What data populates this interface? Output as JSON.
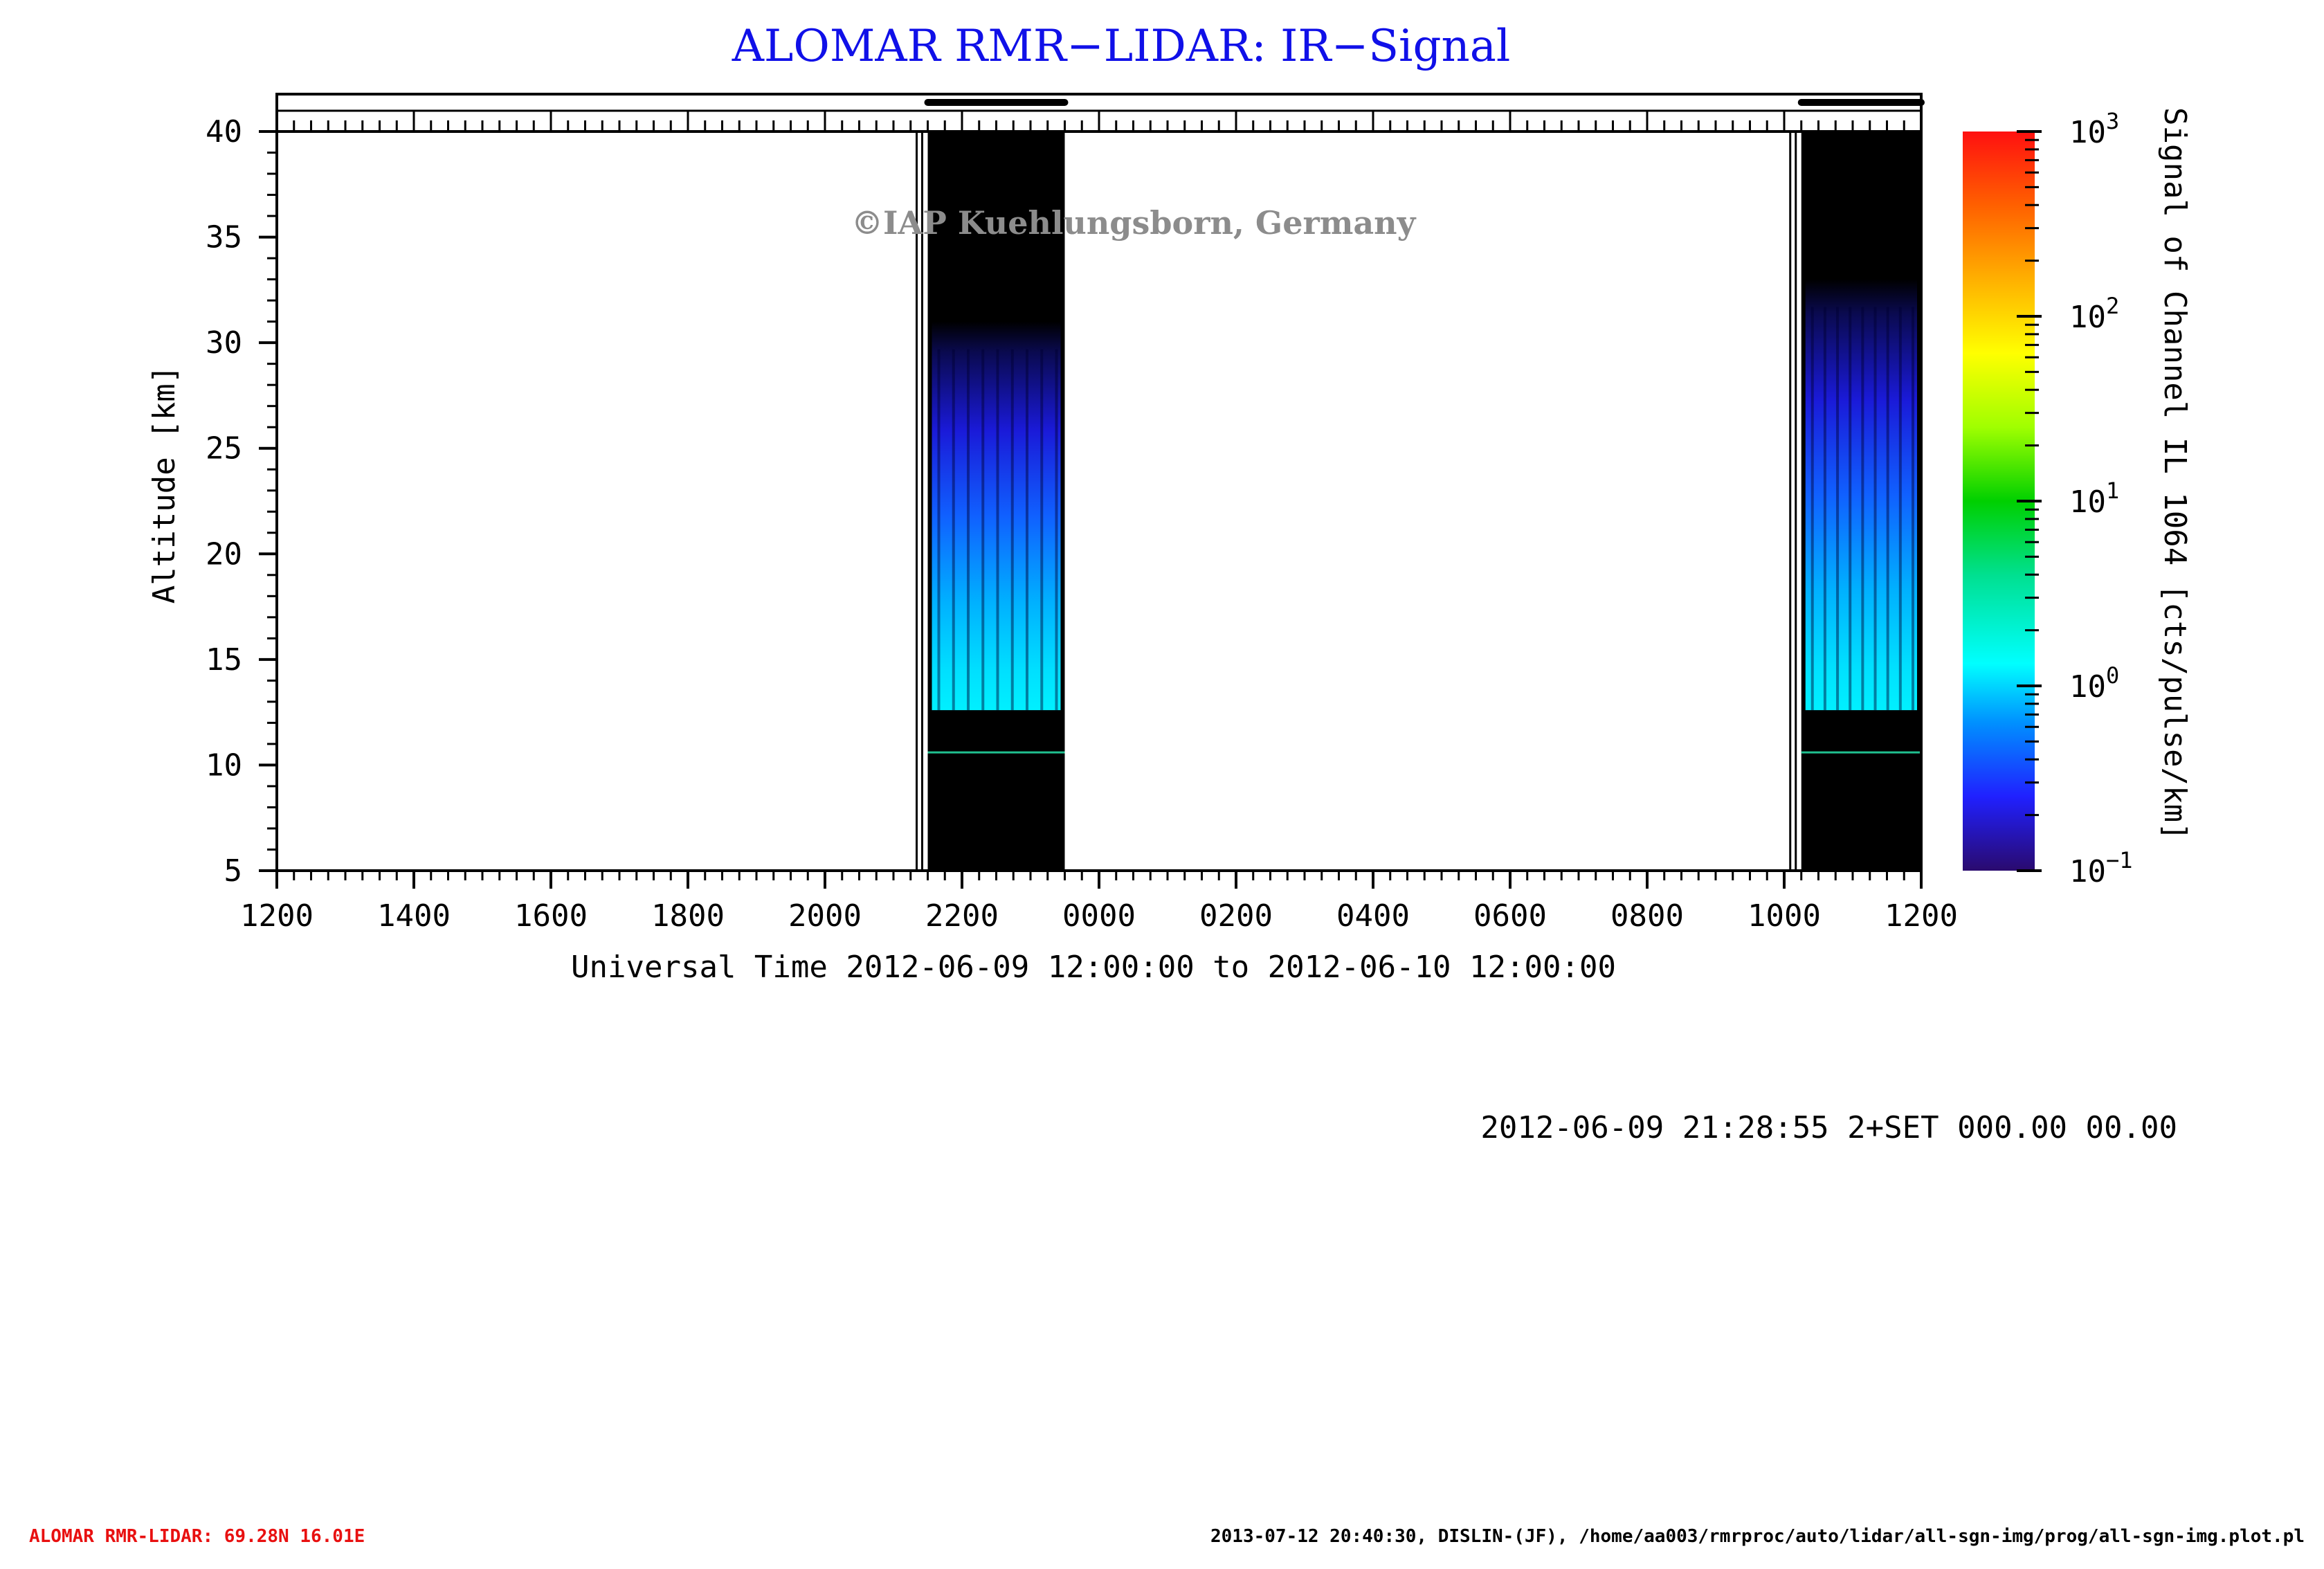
{
  "title": "ALOMAR RMR−LIDAR: IR−Signal",
  "watermark": "©IAP Kuehlungsborn, Germany",
  "info_line": "2012-06-09 21:28:55 2+SET 000.00 00.00",
  "footer_left": "ALOMAR RMR-LIDAR: 69.28N 16.01E",
  "footer_right": "2013-07-12 20:40:30, DISLIN-(JF), /home/aa003/rmrproc/auto/lidar/all-sgn-img/prog/all-sgn-img.plot.pl",
  "chart_data": {
    "type": "heatmap",
    "title": "ALOMAR RMR−LIDAR: IR−Signal",
    "xlabel": "Universal Time 2012-06-09 12:00:00 to 2012-06-10 12:00:00",
    "ylabel": "Altitude [km]",
    "x_range_hours": [
      0,
      24
    ],
    "x_tick_labels": [
      "1200",
      "1400",
      "1600",
      "1800",
      "2000",
      "2200",
      "0000",
      "0200",
      "0400",
      "0600",
      "0800",
      "1000",
      "1200"
    ],
    "ylim": [
      5,
      40
    ],
    "y_ticks": [
      5,
      10,
      15,
      20,
      25,
      30,
      35,
      40
    ],
    "colorbar": {
      "label": "Signal of Channel IL 1064 [cts/pulse/km]",
      "scale": "log",
      "range": [
        0.1,
        1000
      ],
      "tick_labels": [
        {
          "base": "10",
          "exp": "−1"
        },
        {
          "base": "10",
          "exp": "0"
        },
        {
          "base": "10",
          "exp": "1"
        },
        {
          "base": "10",
          "exp": "2"
        },
        {
          "base": "10",
          "exp": "3"
        }
      ],
      "colors": [
        "#2a0a6e",
        "#2020ff",
        "#0090ff",
        "#00ffff",
        "#00e090",
        "#00d000",
        "#a0ff00",
        "#ffff00",
        "#ffb000",
        "#ff6000",
        "#ff1010"
      ]
    },
    "measurement_blocks": [
      {
        "start": "2012-06-09 21:30",
        "end": "2012-06-09 23:30",
        "signal_top_km": 31,
        "signal_bottom_km": 12.6,
        "marker_km": 10.6
      },
      {
        "start": "2012-06-10 10:15",
        "end": "2012-06-10 12:00",
        "signal_top_km": 33,
        "signal_bottom_km": 12.6,
        "marker_km": 10.6
      }
    ]
  }
}
